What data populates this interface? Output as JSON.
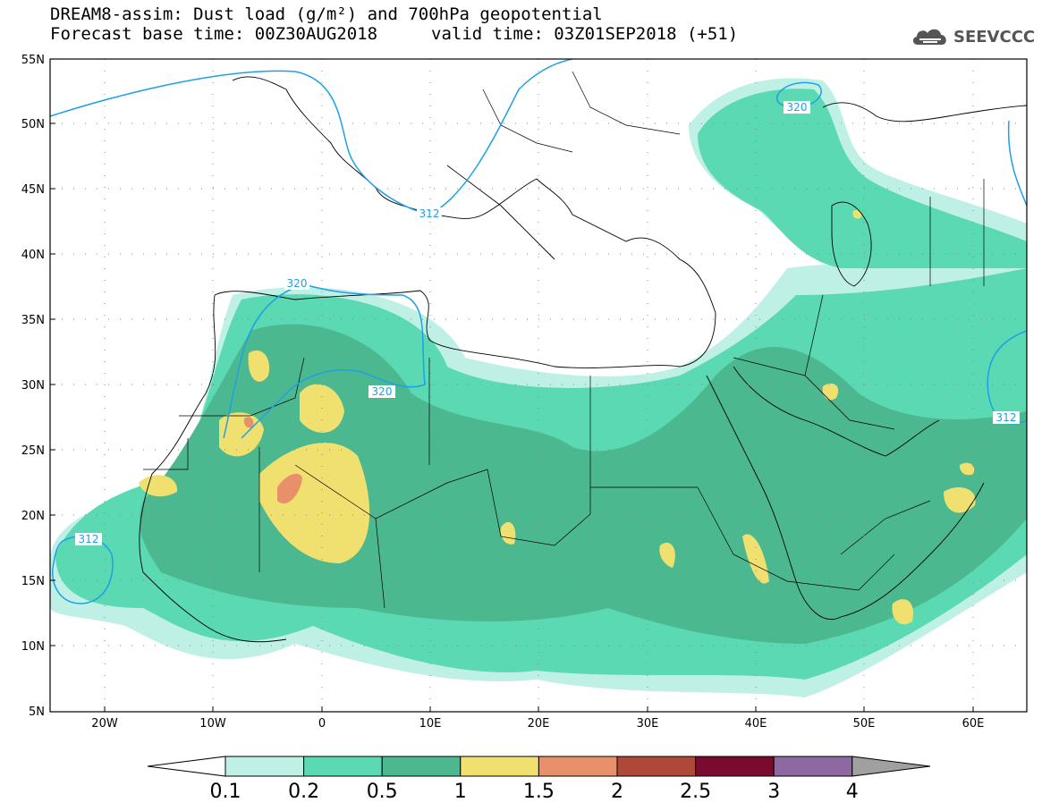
{
  "title": {
    "line1": "DREAM8-assim: Dust load (g/m²) and 700hPa geopotential",
    "line2": "Forecast base time: 00Z30AUG2018",
    "line2b": "valid time: 03Z01SEP2018 (+51)"
  },
  "brand": {
    "name": "SEEVCCC",
    "icon": "cloud-icon"
  },
  "axes": {
    "lat_labels": [
      "55N",
      "50N",
      "45N",
      "40N",
      "35N",
      "30N",
      "25N",
      "20N",
      "15N",
      "10N",
      "5N"
    ],
    "lon_labels": [
      "20W",
      "10W",
      "0",
      "10E",
      "20E",
      "30E",
      "40E",
      "50E",
      "60E"
    ]
  },
  "contours": {
    "labels": [
      "320",
      "312",
      "320",
      "320",
      "312",
      "312"
    ]
  },
  "colorbar": {
    "colors": [
      "#ffffff",
      "#bff0e6",
      "#5ad9b2",
      "#4cb88f",
      "#f0e070",
      "#e8906a",
      "#b0483a",
      "#7a0a2e",
      "#8e68a0",
      "#a0a0a0"
    ],
    "labels": [
      "0.1",
      "0.2",
      "0.5",
      "1",
      "1.5",
      "2",
      "2.5",
      "3",
      "4"
    ]
  }
}
